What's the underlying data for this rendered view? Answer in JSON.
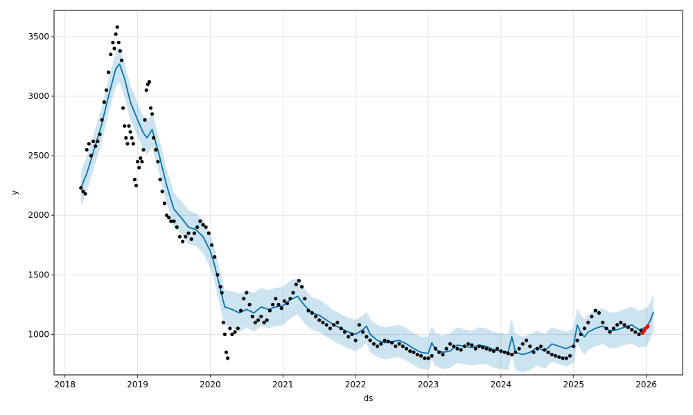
{
  "chart_data": {
    "type": "scatter",
    "xlabel": "ds",
    "ylabel": "y",
    "xlim": [
      2017.85,
      2026.5
    ],
    "ylim": [
      660,
      3720
    ],
    "grid": true,
    "x_ticks": [
      2018,
      2019,
      2020,
      2021,
      2022,
      2023,
      2024,
      2025,
      2026
    ],
    "x_tick_labels": [
      "2018",
      "2019",
      "2020",
      "2021",
      "2022",
      "2023",
      "2024",
      "2025",
      "2026"
    ],
    "y_ticks": [
      1000,
      1500,
      2000,
      2500,
      3000,
      3500
    ],
    "y_tick_labels": [
      "1000",
      "1500",
      "2000",
      "2500",
      "3000",
      "3500"
    ],
    "colors": {
      "observed": "#000000",
      "forecast_line": "#0072B2",
      "uncertainty_band": "#0072B2",
      "recent_points": "#ff0000",
      "grid": "#dddddd"
    },
    "series": [
      {
        "role": "forecast",
        "kind": "line",
        "x": [
          2018.22,
          2018.3,
          2018.4,
          2018.5,
          2018.6,
          2018.7,
          2018.75,
          2018.82,
          2018.9,
          2019.0,
          2019.08,
          2019.13,
          2019.2,
          2019.3,
          2019.4,
          2019.5,
          2019.6,
          2019.7,
          2019.8,
          2019.9,
          2020.0,
          2020.05,
          2020.1,
          2020.15,
          2020.2,
          2020.3,
          2020.4,
          2020.5,
          2020.6,
          2020.7,
          2020.8,
          2020.9,
          2021.0,
          2021.1,
          2021.2,
          2021.3,
          2021.4,
          2021.5,
          2021.6,
          2021.7,
          2021.8,
          2021.9,
          2022.0,
          2022.1,
          2022.15,
          2022.2,
          2022.3,
          2022.4,
          2022.5,
          2022.6,
          2022.7,
          2022.8,
          2022.9,
          2023.0,
          2023.05,
          2023.1,
          2023.2,
          2023.3,
          2023.4,
          2023.5,
          2023.6,
          2023.7,
          2023.8,
          2023.9,
          2024.0,
          2024.1,
          2024.15,
          2024.2,
          2024.3,
          2024.4,
          2024.5,
          2024.6,
          2024.7,
          2024.8,
          2024.9,
          2025.0,
          2025.05,
          2025.1,
          2025.15,
          2025.2,
          2025.3,
          2025.4,
          2025.5,
          2025.6,
          2025.7,
          2025.8,
          2025.9,
          2026.0,
          2026.05,
          2026.1
        ],
        "y": [
          2230,
          2350,
          2550,
          2750,
          3000,
          3230,
          3270,
          3150,
          2950,
          2800,
          2690,
          2650,
          2720,
          2500,
          2250,
          2050,
          1980,
          1900,
          1880,
          1820,
          1700,
          1600,
          1480,
          1350,
          1230,
          1210,
          1180,
          1210,
          1180,
          1230,
          1210,
          1230,
          1240,
          1290,
          1320,
          1240,
          1180,
          1160,
          1120,
          1080,
          1050,
          1020,
          1000,
          1040,
          1070,
          1000,
          950,
          930,
          940,
          950,
          920,
          880,
          850,
          840,
          930,
          870,
          850,
          860,
          910,
          900,
          890,
          910,
          900,
          870,
          860,
          850,
          980,
          850,
          830,
          850,
          890,
          860,
          920,
          900,
          880,
          910,
          1080,
          1010,
          980,
          1020,
          1050,
          1070,
          1030,
          1040,
          1060,
          1080,
          1040,
          1060,
          1110,
          1190
        ]
      },
      {
        "role": "uncertainty",
        "kind": "band",
        "x": [
          2018.22,
          2018.3,
          2018.4,
          2018.5,
          2018.6,
          2018.7,
          2018.75,
          2018.82,
          2018.9,
          2019.0,
          2019.08,
          2019.13,
          2019.2,
          2019.3,
          2019.4,
          2019.5,
          2019.6,
          2019.7,
          2019.8,
          2019.9,
          2020.0,
          2020.05,
          2020.1,
          2020.15,
          2020.2,
          2020.3,
          2020.4,
          2020.5,
          2020.6,
          2020.7,
          2020.8,
          2020.9,
          2021.0,
          2021.1,
          2021.2,
          2021.3,
          2021.4,
          2021.5,
          2021.6,
          2021.7,
          2021.8,
          2021.9,
          2022.0,
          2022.1,
          2022.15,
          2022.2,
          2022.3,
          2022.4,
          2022.5,
          2022.6,
          2022.7,
          2022.8,
          2022.9,
          2023.0,
          2023.05,
          2023.1,
          2023.2,
          2023.3,
          2023.4,
          2023.5,
          2023.6,
          2023.7,
          2023.8,
          2023.9,
          2024.0,
          2024.1,
          2024.15,
          2024.2,
          2024.3,
          2024.4,
          2024.5,
          2024.6,
          2024.7,
          2024.8,
          2024.9,
          2025.0,
          2025.05,
          2025.1,
          2025.15,
          2025.2,
          2025.3,
          2025.4,
          2025.5,
          2025.6,
          2025.7,
          2025.8,
          2025.9,
          2026.0,
          2026.05,
          2026.1
        ],
        "upper": [
          2370,
          2490,
          2690,
          2890,
          3140,
          3370,
          3410,
          3290,
          3090,
          2940,
          2830,
          2790,
          2860,
          2640,
          2390,
          2190,
          2120,
          2040,
          2020,
          1960,
          1840,
          1740,
          1620,
          1490,
          1370,
          1360,
          1340,
          1370,
          1350,
          1390,
          1370,
          1390,
          1400,
          1450,
          1470,
          1380,
          1310,
          1290,
          1250,
          1200,
          1170,
          1140,
          1120,
          1160,
          1190,
          1130,
          1080,
          1060,
          1070,
          1080,
          1050,
          1010,
          980,
          980,
          1070,
          1010,
          990,
          1010,
          1060,
          1040,
          1030,
          1060,
          1050,
          1020,
          1010,
          1000,
          1130,
          1000,
          980,
          1000,
          1030,
          1000,
          1060,
          1040,
          1020,
          1050,
          1220,
          1160,
          1130,
          1170,
          1200,
          1220,
          1180,
          1190,
          1210,
          1230,
          1200,
          1220,
          1260,
          1340
        ],
        "lower": [
          2080,
          2200,
          2400,
          2600,
          2860,
          3080,
          3120,
          3000,
          2800,
          2660,
          2550,
          2510,
          2570,
          2350,
          2100,
          1900,
          1840,
          1760,
          1740,
          1680,
          1560,
          1460,
          1330,
          1200,
          1080,
          1060,
          1020,
          1060,
          1020,
          1070,
          1050,
          1070,
          1080,
          1130,
          1170,
          1090,
          1040,
          1020,
          980,
          940,
          910,
          880,
          860,
          900,
          930,
          850,
          810,
          790,
          800,
          810,
          780,
          740,
          710,
          700,
          790,
          730,
          710,
          720,
          760,
          750,
          740,
          750,
          750,
          720,
          710,
          700,
          830,
          700,
          680,
          700,
          740,
          710,
          770,
          750,
          730,
          760,
          930,
          870,
          830,
          870,
          900,
          920,
          880,
          890,
          910,
          920,
          890,
          900,
          950,
          1040
        ]
      },
      {
        "role": "observed",
        "kind": "points",
        "x": [
          2018.22,
          2018.25,
          2018.28,
          2018.3,
          2018.33,
          2018.36,
          2018.39,
          2018.42,
          2018.45,
          2018.48,
          2018.51,
          2018.54,
          2018.57,
          2018.6,
          2018.63,
          2018.66,
          2018.68,
          2018.7,
          2018.72,
          2018.74,
          2018.76,
          2018.78,
          2018.8,
          2018.82,
          2018.84,
          2018.86,
          2018.88,
          2018.9,
          2018.92,
          2018.94,
          2018.96,
          2018.98,
          2019.0,
          2019.02,
          2019.04,
          2019.06,
          2019.08,
          2019.1,
          2019.12,
          2019.14,
          2019.16,
          2019.18,
          2019.2,
          2019.22,
          2019.25,
          2019.28,
          2019.31,
          2019.34,
          2019.37,
          2019.4,
          2019.43,
          2019.46,
          2019.5,
          2019.54,
          2019.58,
          2019.62,
          2019.66,
          2019.7,
          2019.74,
          2019.78,
          2019.82,
          2019.86,
          2019.9,
          2019.94,
          2019.98,
          2020.02,
          2020.06,
          2020.1,
          2020.14,
          2020.16,
          2020.18,
          2020.2,
          2020.22,
          2020.24,
          2020.27,
          2020.3,
          2020.34,
          2020.38,
          2020.42,
          2020.46,
          2020.5,
          2020.54,
          2020.58,
          2020.62,
          2020.66,
          2020.7,
          2020.74,
          2020.78,
          2020.82,
          2020.86,
          2020.9,
          2020.94,
          2020.98,
          2021.02,
          2021.06,
          2021.1,
          2021.14,
          2021.18,
          2021.22,
          2021.26,
          2021.3,
          2021.35,
          2021.4,
          2021.45,
          2021.5,
          2021.55,
          2021.6,
          2021.65,
          2021.7,
          2021.75,
          2021.8,
          2021.85,
          2021.9,
          2021.95,
          2022.0,
          2022.05,
          2022.1,
          2022.15,
          2022.2,
          2022.25,
          2022.3,
          2022.35,
          2022.4,
          2022.45,
          2022.5,
          2022.55,
          2022.6,
          2022.65,
          2022.7,
          2022.75,
          2022.8,
          2022.85,
          2022.9,
          2022.95,
          2023.0,
          2023.05,
          2023.1,
          2023.15,
          2023.2,
          2023.25,
          2023.3,
          2023.35,
          2023.4,
          2023.45,
          2023.5,
          2023.55,
          2023.6,
          2023.65,
          2023.7,
          2023.75,
          2023.8,
          2023.85,
          2023.9,
          2023.95,
          2024.0,
          2024.05,
          2024.1,
          2024.15,
          2024.2,
          2024.25,
          2024.3,
          2024.35,
          2024.4,
          2024.45,
          2024.5,
          2024.55,
          2024.6,
          2024.65,
          2024.7,
          2024.75,
          2024.8,
          2024.85,
          2024.9,
          2024.95,
          2025.0,
          2025.05,
          2025.1,
          2025.15,
          2025.2,
          2025.25,
          2025.3,
          2025.35,
          2025.4,
          2025.45,
          2025.5,
          2025.55,
          2025.6,
          2025.65,
          2025.7,
          2025.75,
          2025.8,
          2025.85,
          2025.9,
          2025.93
        ],
        "y": [
          2230,
          2200,
          2180,
          2550,
          2600,
          2500,
          2620,
          2580,
          2620,
          2680,
          2800,
          2950,
          3050,
          3200,
          3350,
          3450,
          3400,
          3520,
          3580,
          3450,
          3380,
          3300,
          2900,
          2750,
          2650,
          2600,
          2750,
          2700,
          2650,
          2600,
          2300,
          2250,
          2450,
          2400,
          2480,
          2450,
          2550,
          2800,
          3050,
          3100,
          3120,
          2900,
          2850,
          2650,
          2550,
          2450,
          2300,
          2200,
          2100,
          2000,
          1980,
          1950,
          1950,
          1900,
          1820,
          1780,
          1820,
          1850,
          1800,
          1850,
          1900,
          1950,
          1920,
          1900,
          1850,
          1750,
          1650,
          1500,
          1400,
          1350,
          1100,
          1000,
          850,
          800,
          1050,
          1000,
          1020,
          1050,
          1200,
          1300,
          1350,
          1250,
          1150,
          1100,
          1120,
          1150,
          1100,
          1120,
          1200,
          1250,
          1300,
          1250,
          1220,
          1280,
          1260,
          1300,
          1350,
          1420,
          1450,
          1400,
          1300,
          1200,
          1180,
          1150,
          1120,
          1100,
          1080,
          1050,
          1080,
          1100,
          1050,
          1020,
          980,
          1000,
          950,
          1080,
          1020,
          980,
          950,
          920,
          900,
          920,
          950,
          940,
          930,
          900,
          920,
          900,
          880,
          860,
          850,
          830,
          820,
          800,
          800,
          820,
          880,
          850,
          830,
          880,
          920,
          900,
          880,
          870,
          900,
          920,
          910,
          880,
          900,
          890,
          880,
          870,
          860,
          880,
          860,
          850,
          840,
          830,
          850,
          880,
          920,
          950,
          900,
          850,
          880,
          900,
          870,
          850,
          830,
          820,
          810,
          800,
          800,
          820,
          900,
          950,
          1000,
          1050,
          1100,
          1150,
          1200,
          1180,
          1100,
          1050,
          1020,
          1050,
          1080,
          1100,
          1080,
          1060,
          1040,
          1020,
          1000,
          1030
        ]
      },
      {
        "role": "recent",
        "kind": "points",
        "x": [
          2025.95,
          2025.97,
          2025.99,
          2026.01,
          2026.02
        ],
        "y": [
          1010,
          1030,
          1050,
          1060,
          1070
        ]
      }
    ]
  }
}
